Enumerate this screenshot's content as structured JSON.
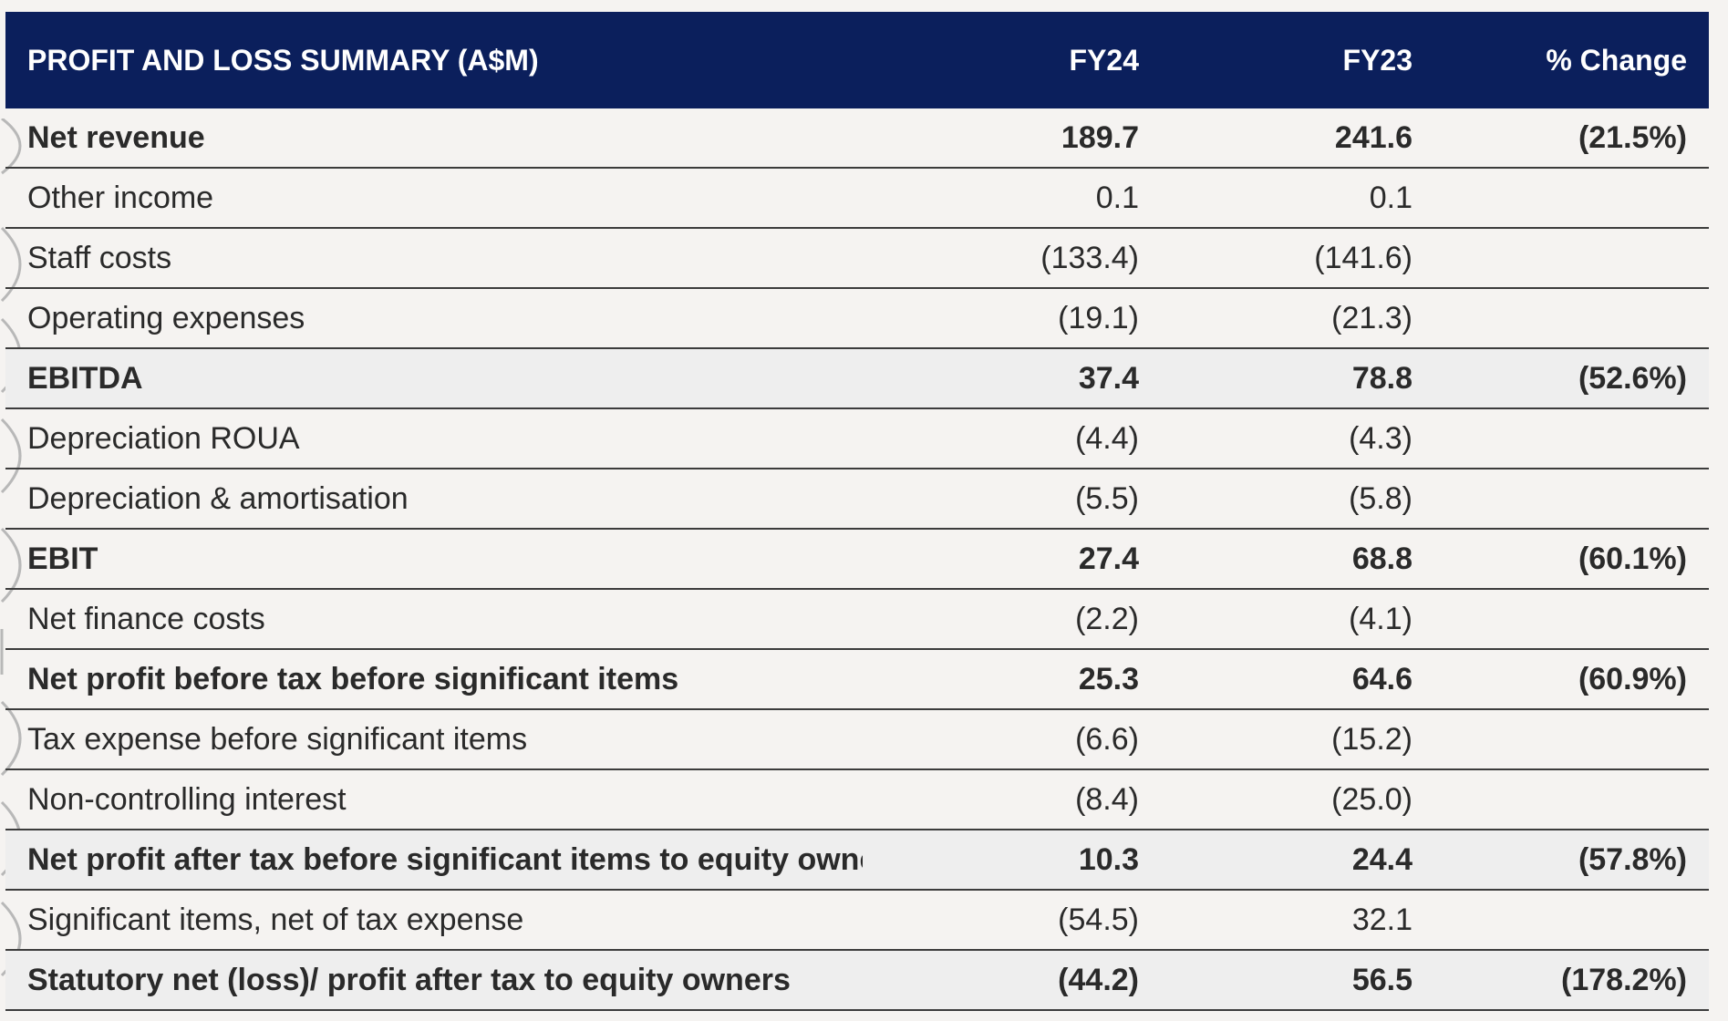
{
  "table": {
    "headers": {
      "label": "PROFIT AND LOSS SUMMARY (A$M)",
      "fy24": "FY24",
      "fy23": "FY23",
      "change": "% Change"
    },
    "rows": [
      {
        "label": "Net revenue",
        "fy24": "189.7",
        "fy23": "241.6",
        "change": "(21.5%)",
        "bold": true,
        "shaded": false
      },
      {
        "label": "Other income",
        "fy24": "0.1",
        "fy23": "0.1",
        "change": "",
        "bold": false,
        "shaded": false
      },
      {
        "label": "Staff costs",
        "fy24": "(133.4)",
        "fy23": "(141.6)",
        "change": "",
        "bold": false,
        "shaded": false
      },
      {
        "label": "Operating expenses",
        "fy24": "(19.1)",
        "fy23": "(21.3)",
        "change": "",
        "bold": false,
        "shaded": false
      },
      {
        "label": "EBITDA",
        "fy24": "37.4",
        "fy23": "78.8",
        "change": "(52.6%)",
        "bold": true,
        "shaded": true
      },
      {
        "label": "Depreciation ROUA",
        "fy24": "(4.4)",
        "fy23": "(4.3)",
        "change": "",
        "bold": false,
        "shaded": false
      },
      {
        "label": "Depreciation & amortisation",
        "fy24": "(5.5)",
        "fy23": "(5.8)",
        "change": "",
        "bold": false,
        "shaded": false
      },
      {
        "label": "EBIT",
        "fy24": "27.4",
        "fy23": "68.8",
        "change": "(60.1%)",
        "bold": true,
        "shaded": false
      },
      {
        "label": "Net finance costs",
        "fy24": "(2.2)",
        "fy23": "(4.1)",
        "change": "",
        "bold": false,
        "shaded": false
      },
      {
        "label": "Net profit before tax before significant items",
        "fy24": "25.3",
        "fy23": "64.6",
        "change": "(60.9%)",
        "bold": true,
        "shaded": false
      },
      {
        "label": "Tax expense before significant items",
        "fy24": "(6.6)",
        "fy23": "(15.2)",
        "change": "",
        "bold": false,
        "shaded": false
      },
      {
        "label": "Non-controlling interest",
        "fy24": "(8.4)",
        "fy23": "(25.0)",
        "change": "",
        "bold": false,
        "shaded": false
      },
      {
        "label": "Net profit after tax before significant items to equity owners",
        "fy24": "10.3",
        "fy23": "24.4",
        "change": "(57.8%)",
        "bold": true,
        "shaded": true
      },
      {
        "label": "Significant items, net of tax expense",
        "fy24": "(54.5)",
        "fy23": "32.1",
        "change": "",
        "bold": false,
        "shaded": false
      },
      {
        "label": "Statutory net (loss)/ profit after tax to equity owners",
        "fy24": "(44.2)",
        "fy23": "56.5",
        "change": "(178.2%)",
        "bold": true,
        "shaded": true
      }
    ]
  },
  "colors": {
    "header_bg": "#0b1f5c",
    "header_text": "#ffffff",
    "page_bg": "#f5f3f1",
    "row_shade": "#eeeeee",
    "rule": "#3c3c3c"
  }
}
